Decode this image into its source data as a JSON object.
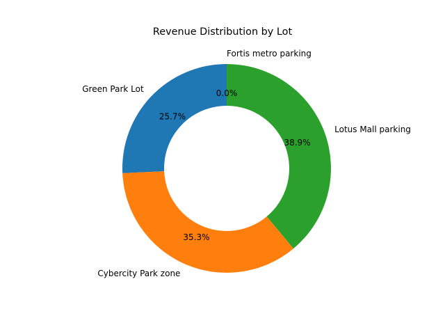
{
  "chart_data": {
    "type": "pie",
    "variant": "donut",
    "title": "Revenue Distribution by Lot",
    "categories": [
      "Green Park Lot",
      "Cybercity Park zone",
      "Lotus Mall parking",
      "Fortis metro parking"
    ],
    "values": [
      25.7,
      35.3,
      38.9,
      0.0
    ],
    "percent_labels": [
      "25.7%",
      "35.3%",
      "38.9%",
      "0.0%"
    ],
    "colors": [
      "#1f77b4",
      "#ff7f0e",
      "#2ca02c",
      "#d62728"
    ],
    "start_angle_deg": 90,
    "direction": "counterclockwise",
    "legend": false
  }
}
